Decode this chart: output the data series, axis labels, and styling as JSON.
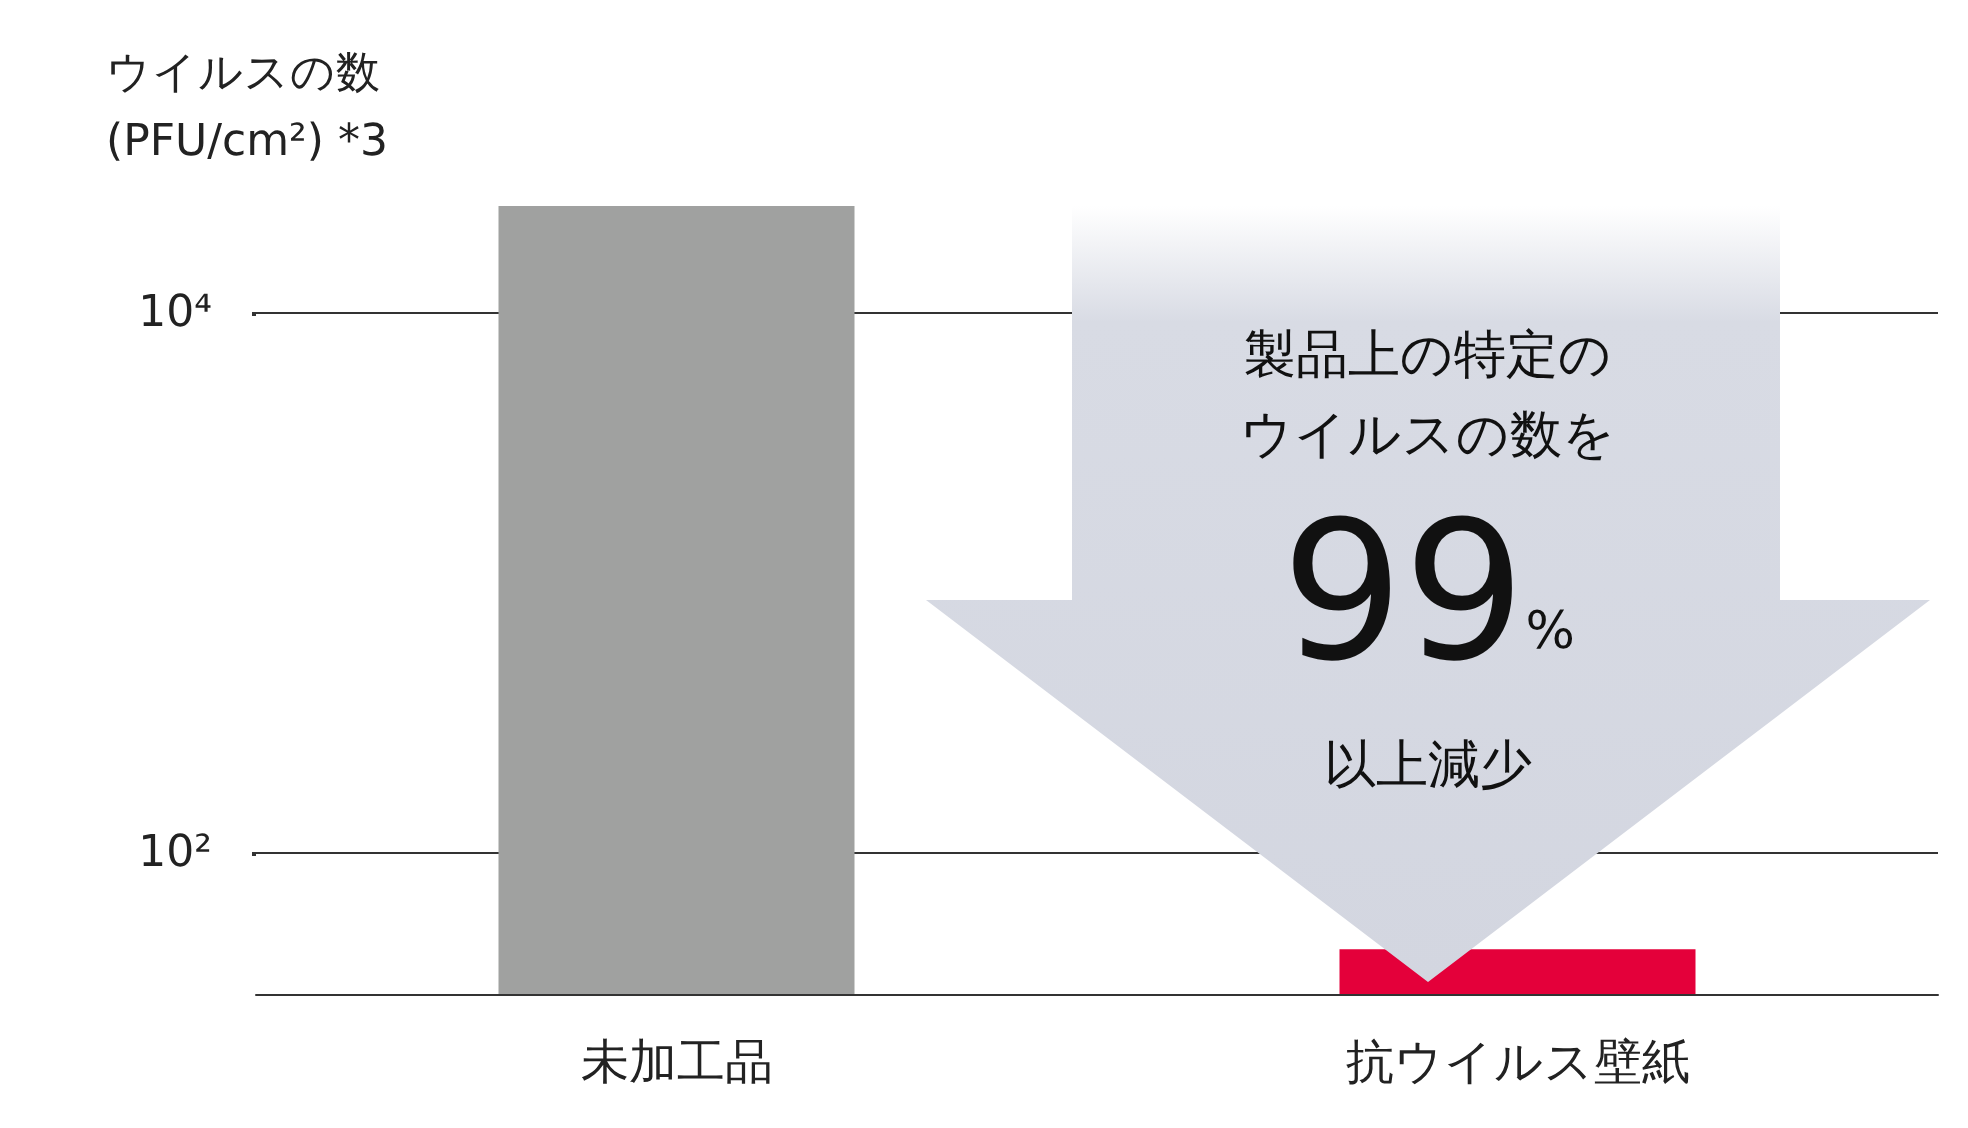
{
  "chart_data": {
    "type": "bar",
    "ylabel": "ウイルスの数\n(PFU/cm²) *3",
    "categories": [
      "未加工品",
      "抗ウイルス壁紙"
    ],
    "values": [
      25000,
      44
    ],
    "colors": [
      "#a0a1a0",
      "#e4003a"
    ],
    "log": true,
    "ylim": [
      30,
      25000
    ],
    "yticks": [
      {
        "value": 100,
        "label": "10²"
      },
      {
        "value": 10000,
        "label": "10⁴"
      }
    ],
    "grid": "y",
    "annotations": [
      "製品上の特定の",
      "ウイルスの数を",
      "99%",
      "以上減少"
    ]
  }
}
